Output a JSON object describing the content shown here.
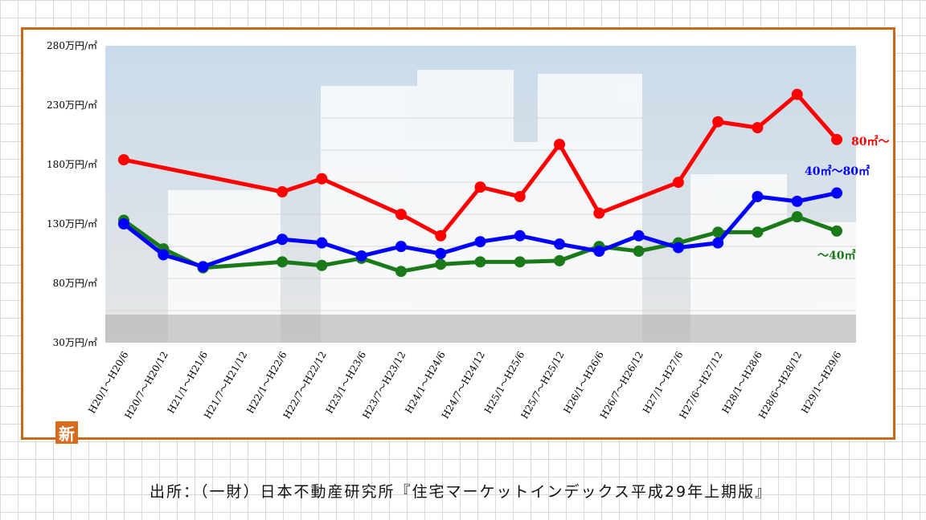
{
  "source": "出所：（一財）日本不動産研究所『住宅マーケットインデックス平成29年上期版』",
  "badge": "新",
  "colors": {
    "frame": "#c8691c",
    "red": "#ff0000",
    "blue": "#0000ff",
    "green": "#1a7a1a"
  },
  "chart_data": {
    "type": "line",
    "categories": [
      "H20/1〜H20/6",
      "H20/7〜H20/12",
      "H21/1〜H21/6",
      "H21/7〜H21/12",
      "H22/1〜H22/6",
      "H22/7〜H22/12",
      "H23/1〜H23/6",
      "H23/7〜H23/12",
      "H24/1〜H24/6",
      "H24/7〜H24/12",
      "H25/1〜H25/6",
      "H25/7〜H25/12",
      "H26/1〜H26/6",
      "H26/7〜H26/12",
      "H27/1〜H27/6",
      "H27/6〜H27/12",
      "H28/1〜H28/6",
      "H28/6〜H28/12",
      "H29/1〜H29/6"
    ],
    "yticks": [
      "280万円/㎡",
      "230万円/㎡",
      "180万円/㎡",
      "130万円/㎡",
      "80万円/㎡",
      "30万円/㎡"
    ],
    "ylim": [
      30,
      280
    ],
    "grid": false,
    "series": [
      {
        "name": "80㎡〜",
        "color": "#ff0000",
        "values": [
          184,
          null,
          null,
          null,
          157,
          168,
          null,
          138,
          120,
          161,
          153,
          197,
          139,
          null,
          165,
          216,
          211,
          239,
          201
        ]
      },
      {
        "name": "40㎡〜80㎡",
        "color": "#0000ff",
        "values": [
          130,
          104,
          94,
          null,
          117,
          114,
          103,
          111,
          105,
          115,
          120,
          113,
          107,
          120,
          110,
          114,
          153,
          149,
          156
        ]
      },
      {
        "name": "〜40㎡",
        "color": "#1a7a1a",
        "values": [
          133,
          109,
          93,
          null,
          98,
          95,
          101,
          90,
          96,
          98,
          98,
          99,
          111,
          107,
          114,
          123,
          123,
          136,
          124
        ]
      }
    ]
  }
}
